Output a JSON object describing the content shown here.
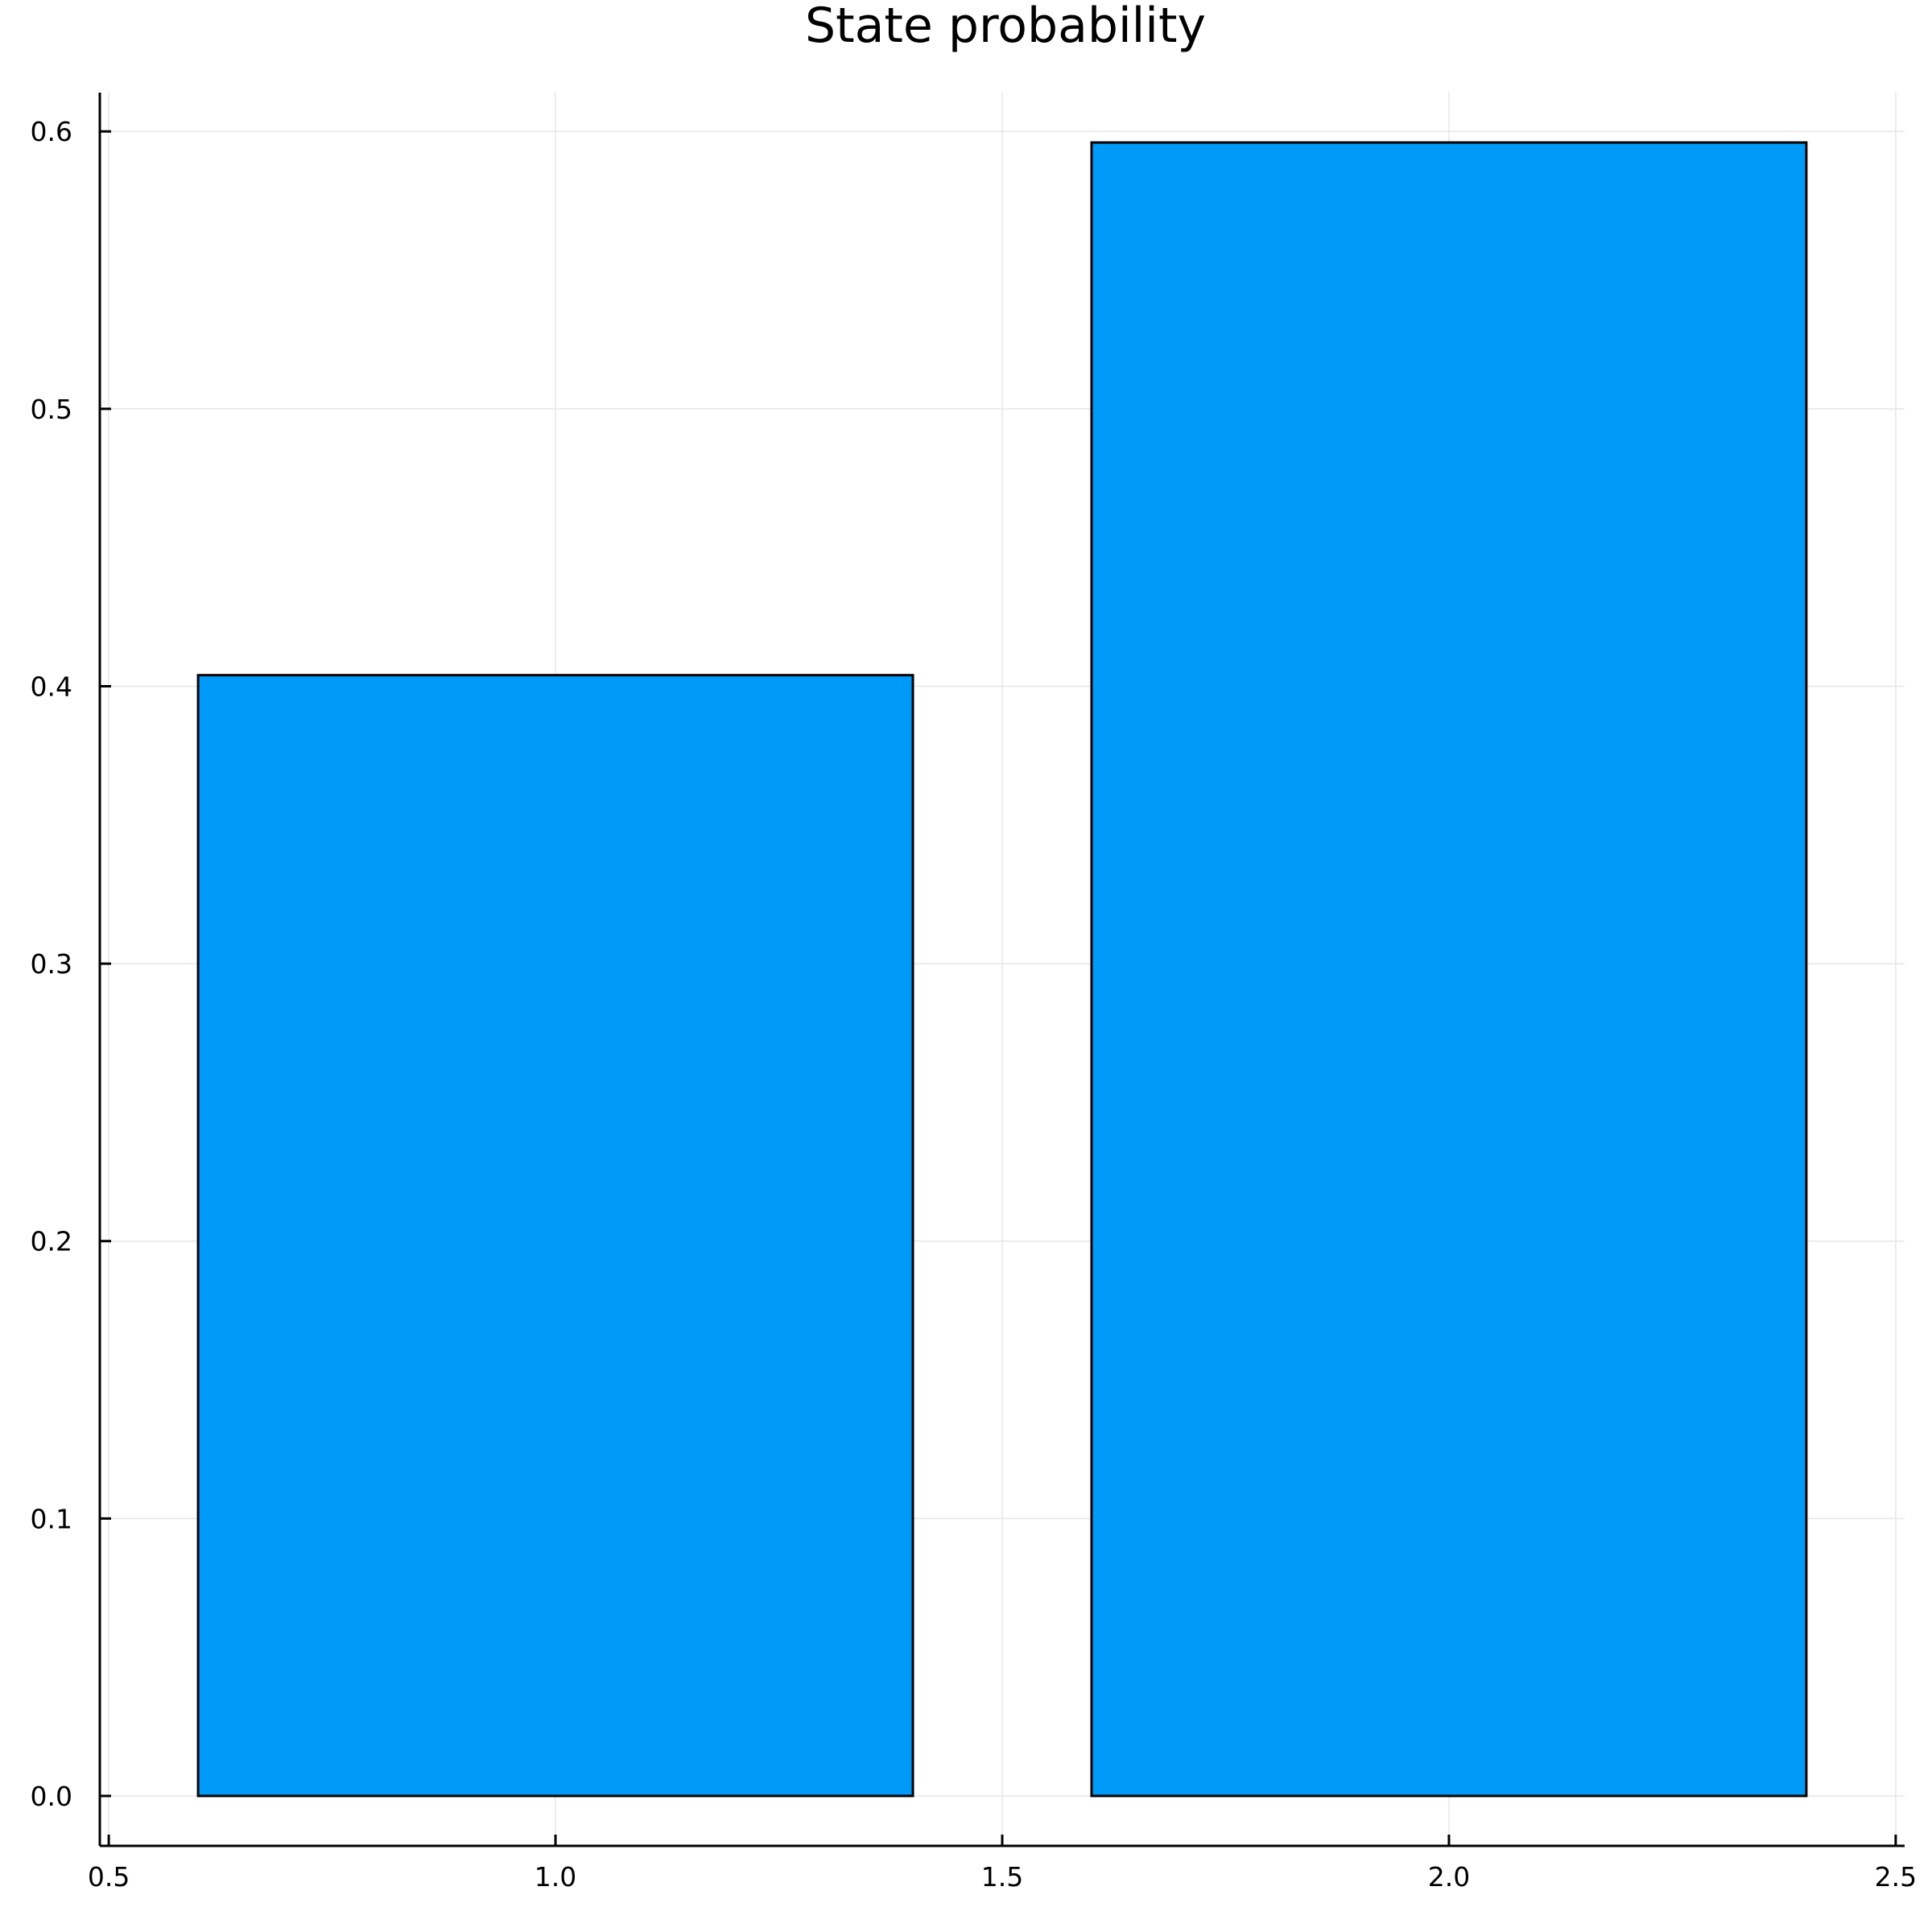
{
  "chart_data": {
    "type": "bar",
    "title": "State probability",
    "xlabel": "",
    "ylabel": "",
    "x": [
      1,
      2
    ],
    "values": [
      0.404,
      0.596
    ],
    "bar_width": 0.8,
    "xlim": [
      0.49,
      2.51
    ],
    "ylim": [
      -0.018,
      0.614
    ],
    "xticks": [
      0.5,
      1.0,
      1.5,
      2.0,
      2.5
    ],
    "xtick_labels": [
      "0.5",
      "1.0",
      "1.5",
      "2.0",
      "2.5"
    ],
    "yticks": [
      0.0,
      0.1,
      0.2,
      0.3,
      0.4,
      0.5,
      0.6
    ],
    "ytick_labels": [
      "0.0",
      "0.1",
      "0.2",
      "0.3",
      "0.4",
      "0.5",
      "0.6"
    ],
    "grid": true,
    "legend": "none",
    "bar_color": "#009AF9",
    "edge_color": "#000000"
  }
}
